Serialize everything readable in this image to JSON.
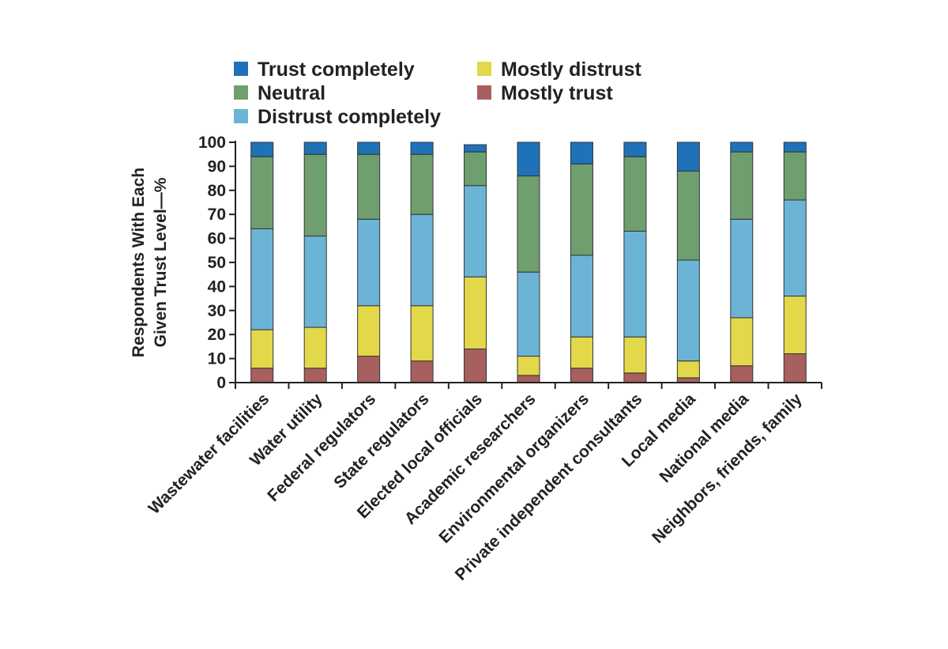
{
  "chart_data": {
    "type": "bar",
    "stacked": true,
    "ylabel_lines": [
      "Respondents With Each",
      "Given Trust Level—%"
    ],
    "ylim": [
      0,
      100
    ],
    "yticks": [
      0,
      10,
      20,
      30,
      40,
      50,
      60,
      70,
      80,
      90,
      100
    ],
    "categories": [
      "Wastewater facilities",
      "Water utility",
      "Federal regulators",
      "State regulators",
      "Elected local officials",
      "Academic researchers",
      "Environmental organizers",
      "Private independent consultants",
      "Local media",
      "National media",
      "Neighbors, friends, family"
    ],
    "series": [
      {
        "name": "Mostly trust",
        "color": "#a85f5f",
        "values": [
          6,
          6,
          11,
          9,
          14,
          3,
          6,
          4,
          2,
          7,
          12
        ]
      },
      {
        "name": "Mostly distrust",
        "color": "#e2d84a",
        "values": [
          16,
          17,
          21,
          23,
          30,
          8,
          13,
          15,
          7,
          20,
          24
        ]
      },
      {
        "name": "Distrust completely",
        "color": "#6cb4d6",
        "values": [
          42,
          38,
          36,
          38,
          38,
          35,
          34,
          44,
          42,
          41,
          40
        ]
      },
      {
        "name": "Neutral",
        "color": "#6f9f6f",
        "values": [
          30,
          34,
          27,
          25,
          14,
          40,
          38,
          31,
          37,
          28,
          20
        ]
      },
      {
        "name": "Trust completely",
        "color": "#1f72b8",
        "values": [
          6,
          5,
          5,
          5,
          3,
          14,
          9,
          6,
          12,
          4,
          4
        ]
      }
    ],
    "legend_order": [
      "Trust completely",
      "Neutral",
      "Distrust completely",
      "Mostly distrust",
      "Mostly trust"
    ],
    "legend_position": "top"
  }
}
